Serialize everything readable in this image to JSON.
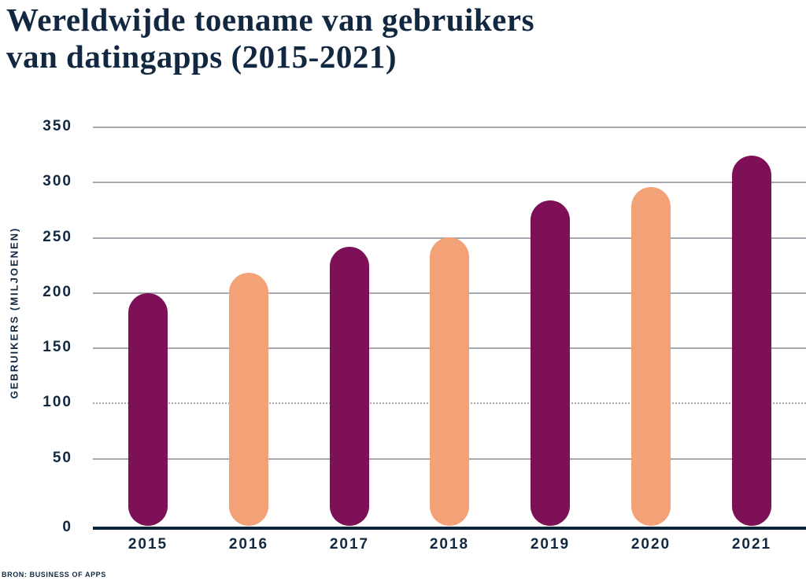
{
  "header": {
    "title_line1": "Wereldwijde toename van gebruikers",
    "title_line2": "van datingapps (2015-2021)"
  },
  "source_note": "BRON: BUSINESS OF APPS",
  "colors": {
    "navy_text": "#112840",
    "axis_line": "#0C2238",
    "gridline_gray": "#A5A7AF",
    "bar_plum": "#7D1056",
    "bar_peach": "#F3A277",
    "background": "#FFFFFF"
  },
  "chart_data": {
    "type": "bar",
    "title": "Wereldwijde toename van gebruikers van datingapps (2015-2021)",
    "categories": [
      "2015",
      "2016",
      "2017",
      "2018",
      "2019",
      "2020",
      "2021"
    ],
    "values": [
      199,
      218,
      241,
      250,
      283,
      295,
      324
    ],
    "xlabel": "",
    "ylabel": "GEBRUIKERS (MILJOENEN)",
    "yticks": [
      0,
      50,
      100,
      150,
      200,
      250,
      300,
      350
    ],
    "ylim": [
      0,
      350
    ],
    "grid": true,
    "dotted_gridline_at": 100,
    "legend": "none",
    "bar_colors_alternating": [
      "#7D1056",
      "#F3A277"
    ],
    "source": "BRON: BUSINESS OF APPS"
  }
}
